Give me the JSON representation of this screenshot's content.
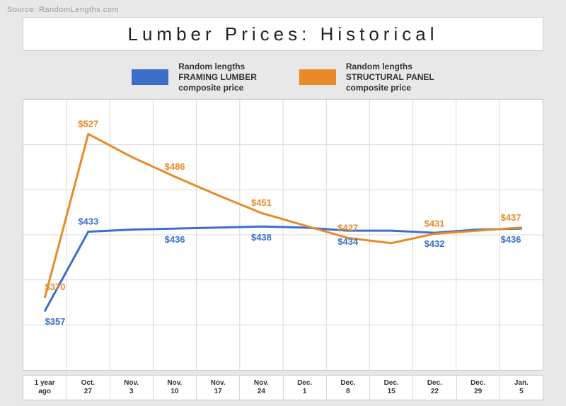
{
  "source": "Source: RandomLengths.com",
  "title": "Lumber Prices: Historical",
  "background_color": "#e8e8e8",
  "panel_color": "#ffffff",
  "border_color": "#c8c8c8",
  "legend": {
    "series1": {
      "color": "#3a6fc9",
      "line1": "Random lengths",
      "line2": "FRAMING LUMBER",
      "line3": "composite price"
    },
    "series2": {
      "color": "#e88a2a",
      "line1": "Random lengths",
      "line2": "STRUCTURAL PANEL",
      "line3": "composite price"
    }
  },
  "chart": {
    "type": "line",
    "categories": [
      "1 year ago",
      "Oct. 27",
      "Nov. 3",
      "Nov. 10",
      "Nov. 17",
      "Nov. 24",
      "Dec. 1",
      "Dec. 8",
      "Dec. 15",
      "Dec. 22",
      "Dec. 29",
      "Jan. 5"
    ],
    "ylim": [
      300,
      560
    ],
    "grid_rows": 6,
    "grid_color": "#d8d8d8",
    "line_width": 3,
    "label_fontsize": 13,
    "label_fontweight": "bold",
    "series": [
      {
        "name": "framing",
        "color": "#3a6fc9",
        "values": [
          357,
          433,
          435,
          436,
          437,
          438,
          437,
          434,
          434,
          432,
          435,
          436
        ],
        "labels": {
          "0": "$357",
          "1": "$433",
          "3": "$436",
          "5": "$438",
          "7": "$434",
          "9": "$432",
          "11": "$436"
        },
        "label_pos": {
          "0": "below",
          "1": "above",
          "3": "below",
          "5": "below",
          "7": "below",
          "9": "below",
          "11": "below"
        }
      },
      {
        "name": "structural",
        "color": "#e88a2a",
        "values": [
          370,
          527,
          505,
          486,
          468,
          451,
          439,
          427,
          422,
          431,
          434,
          437
        ],
        "labels": {
          "0": "$370",
          "1": "$527",
          "3": "$486",
          "5": "$451",
          "7": "$427",
          "9": "$431",
          "11": "$437"
        },
        "label_pos": {
          "0": "above",
          "1": "above",
          "3": "above",
          "5": "above",
          "7": "above",
          "9": "above",
          "11": "above"
        }
      }
    ]
  }
}
